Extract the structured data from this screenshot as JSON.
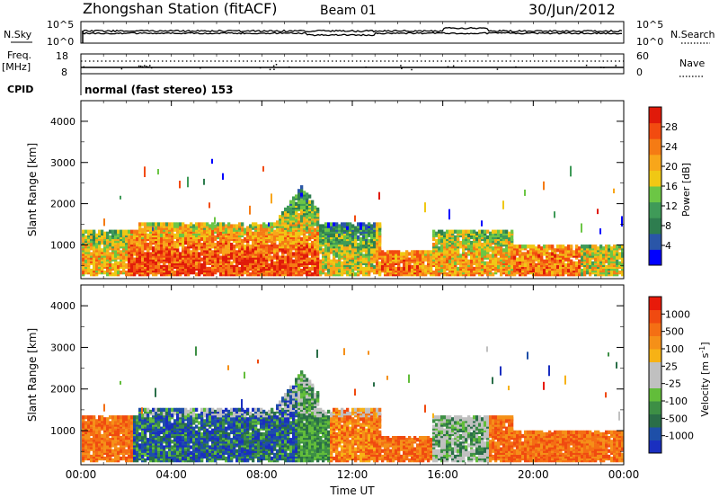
{
  "header": {
    "station": "Zhongshan Station (fitACF)",
    "beam": "Beam 01",
    "date": "30/Jun/2012"
  },
  "summary_panels": {
    "nsky_label": "N.Sky",
    "nsky_ticks": [
      "10^5",
      "10^0"
    ],
    "nsearch_label": "N.Search",
    "nsearch_ticks": [
      "10^5",
      "10^0"
    ],
    "freq_label": "Freq.",
    "freq_unit": "[MHz]",
    "freq_ticks": [
      "18",
      "8"
    ],
    "nave_label": "Nave",
    "nave_ticks": [
      "60",
      "0"
    ],
    "cpid_label": "CPID",
    "cpid_text": "normal (fast stereo) 153"
  },
  "chart_data": [
    {
      "type": "heatmap",
      "name": "power",
      "ylabel": "Slant Range [km]",
      "yticks": [
        "4000",
        "3000",
        "2000",
        "1000"
      ],
      "ylim": [
        180,
        4500
      ],
      "xlim_hours": [
        0,
        24
      ],
      "colorbar_label": "Power [dB]",
      "colorbar_ticks": [
        "28",
        "24",
        "20",
        "16",
        "12",
        "8",
        "4"
      ],
      "colorbar_colors": [
        "#0000ff",
        "#2a56a8",
        "#2e7d4f",
        "#3f9a58",
        "#6cc645",
        "#f0c814",
        "#f8a61a",
        "#f57b14",
        "#f24b10",
        "#e01a0a"
      ]
    },
    {
      "type": "heatmap",
      "name": "velocity",
      "ylabel": "Slant Range [km]",
      "yticks": [
        "4000",
        "3000",
        "2000",
        "1000"
      ],
      "ylim": [
        180,
        4500
      ],
      "xlim_hours": [
        0,
        24
      ],
      "colorbar_label": "Velocity [m s",
      "colorbar_superscript": "-1",
      "colorbar_label_close": "]",
      "colorbar_ticks": [
        "1000",
        "500",
        "100",
        "25",
        "-25",
        "-100",
        "-500",
        "-1000"
      ],
      "colorbar_colors": [
        "#1a2fc0",
        "#1e4fa8",
        "#2a6e48",
        "#3d8f45",
        "#62bd3a",
        "#c0c0c0",
        "#c0c0c0",
        "#f7b215",
        "#f59018",
        "#f46f14",
        "#f04a10",
        "#e81a0a"
      ]
    }
  ],
  "xaxis": {
    "ticks": [
      "00:00",
      "04:00",
      "08:00",
      "12:00",
      "16:00",
      "20:00",
      "00:00"
    ],
    "label": "Time UT"
  }
}
